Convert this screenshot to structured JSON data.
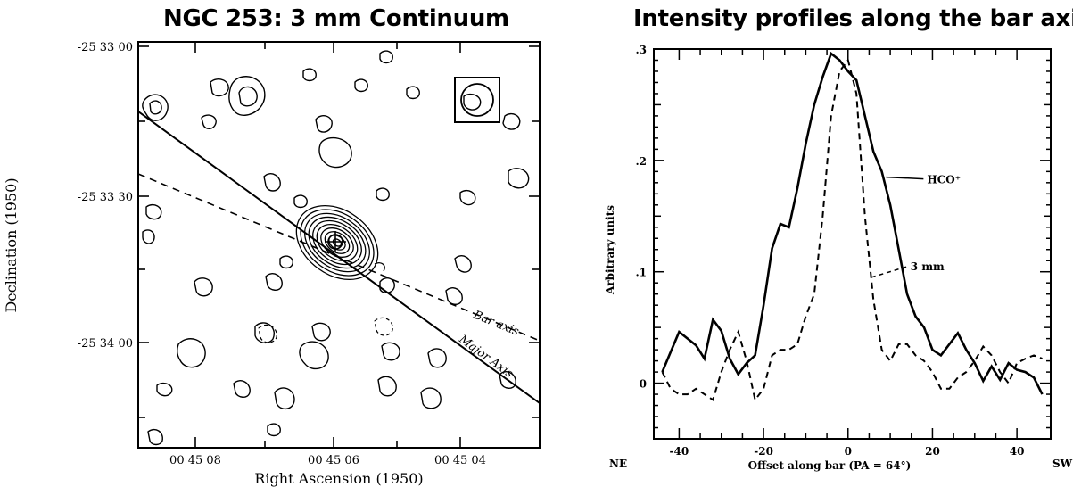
{
  "chart_data": [
    {
      "type": "contour",
      "title": "NGC 253: 3 mm Continuum",
      "xlabel": "Right Ascension (1950)",
      "ylabel": "Declination (1950)",
      "x_ticks": [
        "00 45 08",
        "00 45 06",
        "00 45 04"
      ],
      "y_ticks": [
        "-25 33 00",
        "-25 33 30",
        "-25 34 00"
      ],
      "annotations": [
        "Bar axis",
        "Major Axis"
      ],
      "line_styles": {
        "bar_axis": "dashed",
        "major_axis": "solid"
      },
      "source_contour_levels": 10
    },
    {
      "type": "line",
      "title": "Intensity profiles along the bar axis",
      "xlabel": "Offset along bar (PA = 64°)",
      "ylabel": "Arbitrary units",
      "xlim": [
        -46,
        48
      ],
      "ylim": [
        -0.05,
        0.3
      ],
      "x_ticks": [
        "-40",
        "-20",
        "0",
        "20",
        "40"
      ],
      "y_ticks": [
        "0",
        ".1",
        ".2",
        ".3"
      ],
      "x_end_labels": {
        "left": "NE",
        "right": "SW"
      },
      "series": [
        {
          "name": "HCO⁺",
          "style": "solid",
          "x": [
            -44,
            -42,
            -40,
            -38,
            -36,
            -34,
            -32,
            -30,
            -28,
            -26,
            -24,
            -22,
            -20,
            -18,
            -16,
            -14,
            -12,
            -10,
            -8,
            -6,
            -4,
            -2,
            0,
            2,
            4,
            6,
            8,
            10,
            12,
            14,
            16,
            18,
            20,
            22,
            24,
            26,
            28,
            30,
            32,
            34,
            36,
            38,
            40,
            42,
            44,
            46
          ],
          "values": [
            0.01,
            0.028,
            0.046,
            0.04,
            0.034,
            0.022,
            0.057,
            0.047,
            0.022,
            0.008,
            0.018,
            0.025,
            0.07,
            0.121,
            0.143,
            0.14,
            0.175,
            0.215,
            0.25,
            0.275,
            0.296,
            0.29,
            0.28,
            0.272,
            0.24,
            0.208,
            0.19,
            0.16,
            0.12,
            0.08,
            0.06,
            0.05,
            0.03,
            0.025,
            0.035,
            0.045,
            0.03,
            0.018,
            0.002,
            0.015,
            0.003,
            0.018,
            0.012,
            0.01,
            0.005,
            -0.01
          ]
        },
        {
          "name": "3 mm",
          "style": "dashed",
          "x": [
            -44,
            -42,
            -40,
            -38,
            -36,
            -34,
            -32,
            -30,
            -28,
            -26,
            -24,
            -22,
            -20,
            -18,
            -16,
            -14,
            -12,
            -10,
            -8,
            -6,
            -4,
            -2,
            0,
            2,
            4,
            6,
            8,
            10,
            12,
            14,
            16,
            18,
            20,
            22,
            24,
            26,
            28,
            30,
            32,
            34,
            36,
            38,
            40,
            42,
            44,
            46
          ],
          "values": [
            0.01,
            -0.005,
            -0.01,
            -0.01,
            -0.005,
            -0.01,
            -0.015,
            0.01,
            0.03,
            0.046,
            0.02,
            -0.015,
            -0.005,
            0.025,
            0.03,
            0.03,
            0.035,
            0.06,
            0.08,
            0.15,
            0.24,
            0.28,
            0.29,
            0.26,
            0.15,
            0.075,
            0.03,
            0.02,
            0.035,
            0.035,
            0.025,
            0.02,
            0.01,
            -0.005,
            -0.005,
            0.005,
            0.01,
            0.02,
            0.033,
            0.025,
            0.01,
            0.0,
            0.018,
            0.022,
            0.025,
            0.022
          ]
        }
      ]
    }
  ]
}
